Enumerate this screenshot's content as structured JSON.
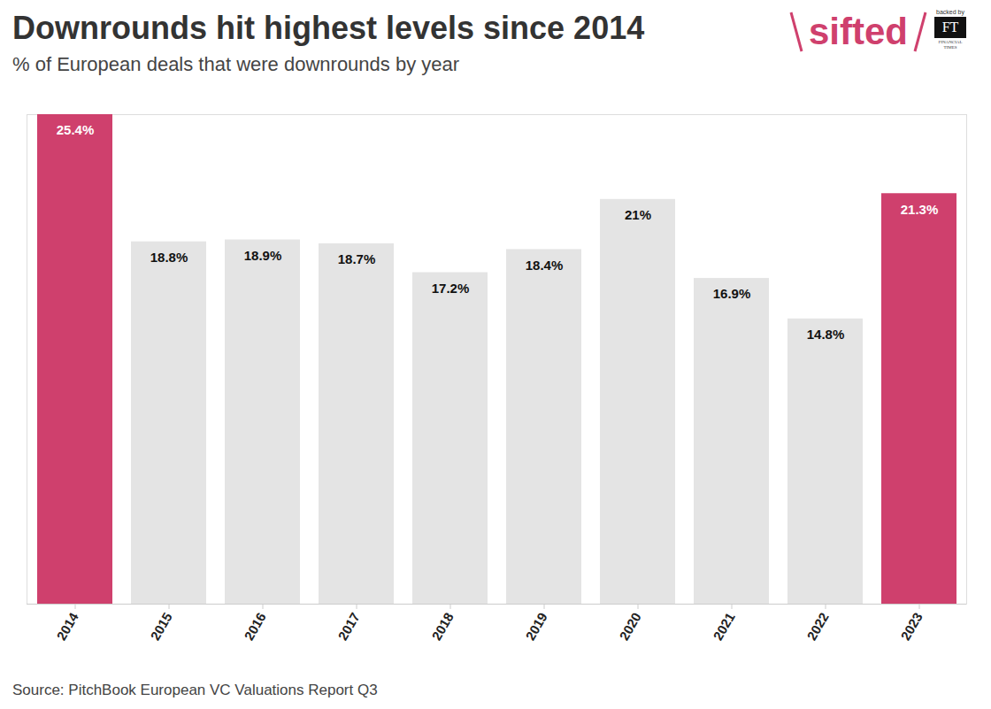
{
  "chart_data": {
    "type": "bar",
    "title": "Downrounds hit highest levels since 2014",
    "subtitle": "% of European deals that were downrounds by year",
    "source": "Source: PitchBook European VC Valuations Report Q3",
    "brand": "sifted",
    "brand_note": "backed by",
    "brand_partner": "FT",
    "brand_partner_name": "FINANCIAL TIMES",
    "categories": [
      "2014",
      "2015",
      "2016",
      "2017",
      "2018",
      "2019",
      "2020",
      "2021",
      "2022",
      "2023"
    ],
    "values": [
      25.4,
      18.8,
      18.9,
      18.7,
      17.2,
      18.4,
      21,
      16.9,
      14.8,
      21.3
    ],
    "value_labels": [
      "25.4%",
      "18.8%",
      "18.9%",
      "18.7%",
      "17.2%",
      "18.4%",
      "21%",
      "16.9%",
      "14.8%",
      "21.3%"
    ],
    "colors": [
      "#cf406d",
      "#e4e4e4",
      "#e4e4e4",
      "#e4e4e4",
      "#e4e4e4",
      "#e4e4e4",
      "#e4e4e4",
      "#e4e4e4",
      "#e4e4e4",
      "#cf406d"
    ],
    "ylim": [
      0,
      25.4
    ],
    "yticks": [],
    "grid": false,
    "data_labels": true,
    "tick_labels": "x"
  }
}
